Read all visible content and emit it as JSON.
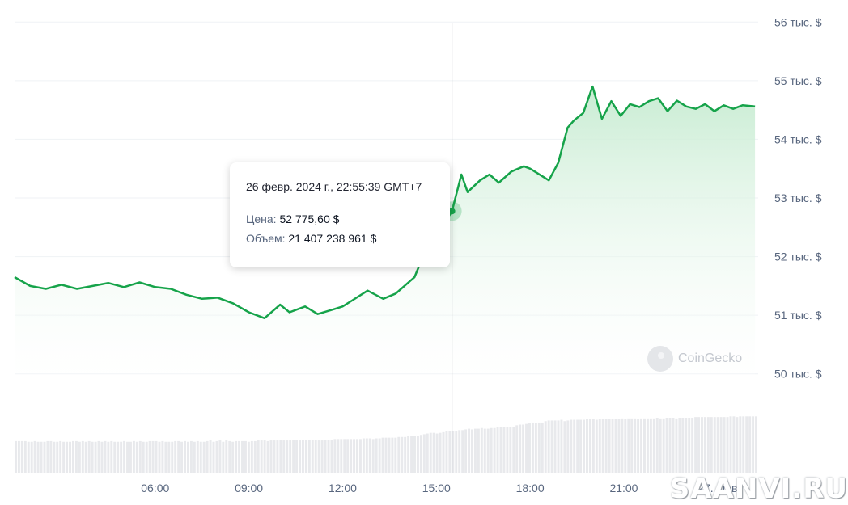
{
  "chart_data": {
    "type": "line",
    "title": "",
    "y_ticks": [
      "50 тыс. $",
      "51 тыс. $",
      "52 тыс. $",
      "53 тыс. $",
      "54 тыс. $",
      "55 тыс. $",
      "56 тыс. $"
    ],
    "y_tick_values": [
      50000,
      51000,
      52000,
      53000,
      54000,
      55000,
      56000
    ],
    "ylim": [
      49900,
      56100
    ],
    "x_ticks": [
      "06:00",
      "09:00",
      "12:00",
      "15:00",
      "18:00",
      "21:00",
      "27. Фев"
    ],
    "x_tick_hours": [
      6,
      9,
      12,
      15,
      18,
      21,
      24
    ],
    "xlim": [
      1.5,
      25.3
    ],
    "grid": true,
    "series": [
      {
        "values_hours": [
          1.5,
          2.0,
          2.5,
          3.0,
          3.5,
          4.0,
          4.5,
          5.0,
          5.5,
          6.0,
          6.5,
          7.0,
          7.5,
          8.0,
          8.5,
          9.0,
          9.5,
          10.0,
          10.3,
          10.8,
          11.2,
          11.7,
          12.0,
          12.3,
          12.8,
          13.3,
          13.7,
          14.3,
          14.8,
          15.2,
          15.5,
          15.8,
          16.0,
          16.4,
          16.7,
          17.0,
          17.4,
          17.8,
          18.0,
          18.6,
          18.9,
          19.2,
          19.4,
          19.7,
          20.0,
          20.3,
          20.6,
          20.9,
          21.2,
          21.5,
          21.8,
          22.1,
          22.4,
          22.7,
          23.0,
          23.3,
          23.6,
          23.9,
          24.2,
          24.5,
          24.8,
          25.2
        ],
        "values": [
          51650,
          51500,
          51450,
          51520,
          51450,
          51500,
          51550,
          51480,
          51560,
          51480,
          51450,
          51350,
          51280,
          51300,
          51200,
          51050,
          50950,
          51180,
          51050,
          51150,
          51020,
          51100,
          51150,
          51250,
          51420,
          51280,
          51370,
          51650,
          52300,
          52520,
          52775,
          53400,
          53100,
          53300,
          53400,
          53260,
          53450,
          53540,
          53500,
          53300,
          53600,
          54200,
          54320,
          54450,
          54900,
          54350,
          54650,
          54400,
          54600,
          54550,
          54650,
          54700,
          54480,
          54660,
          54560,
          54520,
          54600,
          54480,
          54580,
          54520,
          54580,
          54560
        ]
      }
    ],
    "volume_bars": [
      46,
      46,
      46,
      46,
      45,
      45,
      46,
      45,
      45,
      45,
      46,
      46,
      45,
      45,
      46,
      45,
      45,
      45,
      46,
      46,
      45,
      46,
      45,
      46,
      45,
      45,
      46,
      45,
      46,
      45,
      46,
      45,
      45,
      45,
      46,
      45,
      45,
      46,
      45,
      46,
      45,
      45,
      46,
      46,
      46,
      45,
      46,
      45,
      45,
      45,
      46,
      46,
      45,
      46,
      45,
      46,
      45,
      46,
      45,
      45,
      46,
      47,
      45,
      46,
      47,
      45,
      47,
      46,
      45,
      46,
      46,
      46,
      46,
      45,
      46,
      46,
      47,
      47,
      47,
      46,
      47,
      47,
      47,
      48,
      47,
      47,
      47,
      48,
      48,
      47,
      48,
      48,
      48,
      48,
      48,
      47,
      47,
      48,
      48,
      48,
      49,
      49,
      49,
      49,
      49,
      49,
      49,
      49,
      49,
      50,
      50,
      50,
      49,
      50,
      50,
      51,
      51,
      51,
      51,
      51,
      52,
      52,
      52,
      53,
      53,
      53,
      54,
      55,
      56,
      57,
      58,
      58,
      57,
      58,
      59,
      60,
      61,
      60,
      61,
      62,
      62,
      63,
      64,
      63,
      64,
      64,
      65,
      64,
      64,
      65,
      65,
      66,
      66,
      66,
      66,
      67,
      67,
      69,
      70,
      70,
      71,
      72,
      73,
      72,
      73,
      73,
      75,
      76,
      76,
      76,
      76,
      77,
      75,
      76,
      77,
      77,
      77,
      77,
      77,
      78,
      78,
      78,
      77,
      78,
      78,
      78,
      78,
      78,
      78,
      78,
      79,
      78,
      79,
      79,
      79,
      78,
      79,
      79,
      79,
      79,
      79,
      80,
      79,
      79,
      80,
      80,
      80,
      79,
      80,
      80,
      80,
      80,
      80,
      81,
      81,
      81,
      81,
      81,
      81,
      81,
      81,
      81,
      81,
      81,
      82,
      82,
      81,
      82,
      82,
      82,
      82,
      82,
      82
    ],
    "volume_units": "relative (0-100)",
    "hover": {
      "hour": 15.5,
      "date_text": "26 февр. 2024 г., 22:55:39 GMT+7",
      "price_label": "Цена:",
      "price_value": "52 775,60 $",
      "volume_label": "Объем:",
      "volume_value": "21 407 238 961 $"
    },
    "colors": {
      "line": "#16a34a",
      "area_top": "#c5ebd0",
      "volume": "#e8e9ec",
      "grid": "#eff2f5",
      "crosshair": "#9aa0a6"
    }
  },
  "watermark": {
    "text": "CoinGecko",
    "icon": "gecko-logo-icon"
  },
  "site_watermark": "SAANVI.RU"
}
